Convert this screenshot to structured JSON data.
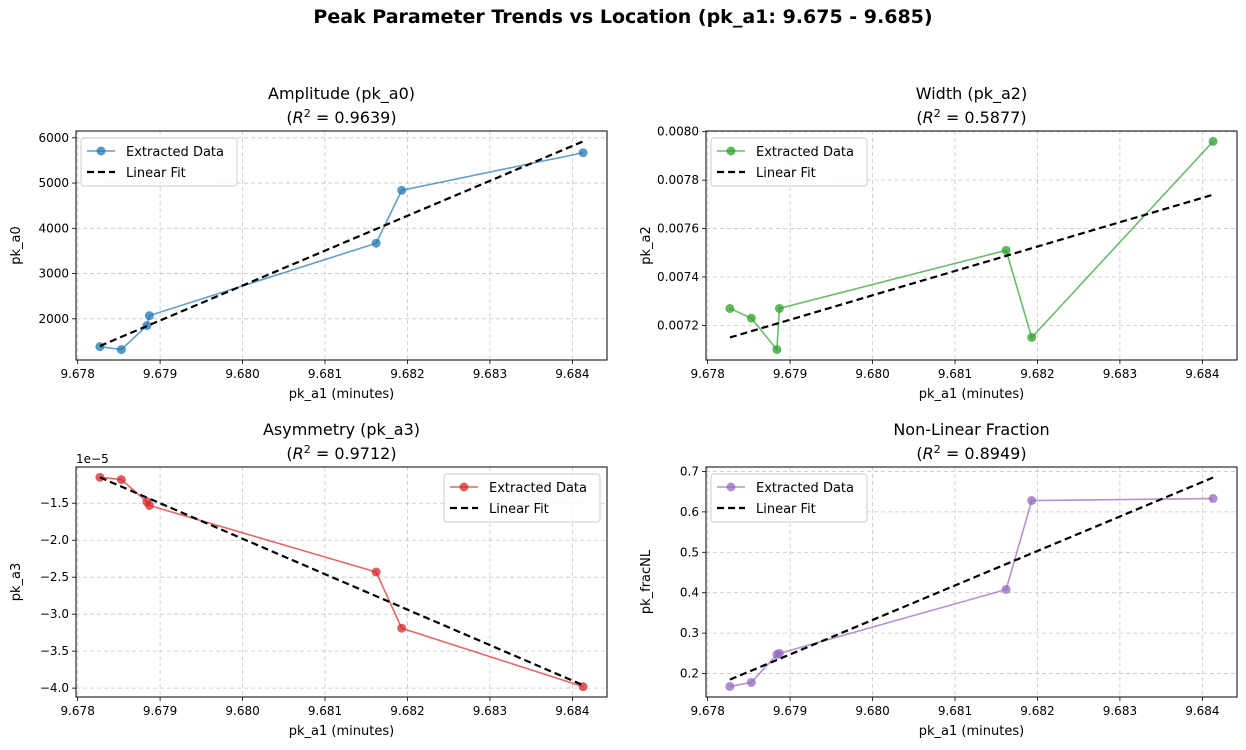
{
  "suptitle": "Peak Parameter Trends vs Location (pk_a1: 9.675 - 9.685)",
  "chart_data": [
    {
      "type": "line",
      "title": "Amplitude (pk_a0)",
      "r2_prefix": "R",
      "r2_value": "0.9639",
      "xlabel": "pk_a1 (minutes)",
      "ylabel": "pk_a0",
      "color": "#1f77b4",
      "legend": "upper-left",
      "grid": true,
      "xlim": [
        9.67798,
        9.68442
      ],
      "ylim": [
        1090,
        6150
      ],
      "x_ticks": [
        9.678,
        9.679,
        9.68,
        9.681,
        9.682,
        9.683,
        9.684
      ],
      "x_tick_labels": [
        "9.678",
        "9.679",
        "9.680",
        "9.681",
        "9.682",
        "9.683",
        "9.684"
      ],
      "y_ticks": [
        2000,
        3000,
        4000,
        5000,
        6000
      ],
      "y_tick_labels": [
        "2000",
        "3000",
        "4000",
        "5000",
        "6000"
      ],
      "offset_text": "",
      "series": [
        {
          "name": "Extracted Data",
          "x": [
            9.67827,
            9.67853,
            9.67884,
            9.67887,
            9.68162,
            9.68193,
            9.68413
          ],
          "y": [
            1385,
            1320,
            1850,
            2070,
            3670,
            4840,
            5670
          ]
        },
        {
          "name": "Linear Fit",
          "x": [
            9.67827,
            9.68413
          ],
          "y": [
            1400,
            5920
          ]
        }
      ]
    },
    {
      "type": "line",
      "title": "Width (pk_a2)",
      "r2_prefix": "R",
      "r2_value": "0.5877",
      "xlabel": "pk_a1 (minutes)",
      "ylabel": "pk_a2",
      "color": "#2ca02c",
      "legend": "upper-left",
      "grid": true,
      "xlim": [
        9.67798,
        9.68442
      ],
      "ylim": [
        0.007057,
        0.008003
      ],
      "x_ticks": [
        9.678,
        9.679,
        9.68,
        9.681,
        9.682,
        9.683,
        9.684
      ],
      "x_tick_labels": [
        "9.678",
        "9.679",
        "9.680",
        "9.681",
        "9.682",
        "9.683",
        "9.684"
      ],
      "y_ticks": [
        0.0072,
        0.0074,
        0.0076,
        0.0078,
        0.008
      ],
      "y_tick_labels": [
        "0.0072",
        "0.0074",
        "0.0076",
        "0.0078",
        "0.0080"
      ],
      "offset_text": "",
      "series": [
        {
          "name": "Extracted Data",
          "x": [
            9.67827,
            9.67853,
            9.67884,
            9.67887,
            9.68162,
            9.68193,
            9.68413
          ],
          "y": [
            0.00727,
            0.00723,
            0.0071,
            0.00727,
            0.00751,
            0.00715,
            0.00796
          ]
        },
        {
          "name": "Linear Fit",
          "x": [
            9.67827,
            9.68413
          ],
          "y": [
            0.00715,
            0.00774
          ]
        }
      ]
    },
    {
      "type": "line",
      "title": "Asymmetry (pk_a3)",
      "r2_prefix": "R",
      "r2_value": "0.9712",
      "xlabel": "pk_a1 (minutes)",
      "ylabel": "pk_a3",
      "color": "#d62728",
      "legend": "upper-right",
      "grid": true,
      "xlim": [
        9.67798,
        9.68442
      ],
      "ylim": [
        -4.12,
        -1.01
      ],
      "x_ticks": [
        9.678,
        9.679,
        9.68,
        9.681,
        9.682,
        9.683,
        9.684
      ],
      "x_tick_labels": [
        "9.678",
        "9.679",
        "9.680",
        "9.681",
        "9.682",
        "9.683",
        "9.684"
      ],
      "y_ticks": [
        -4.0,
        -3.5,
        -3.0,
        -2.5,
        -2.0,
        -1.5
      ],
      "y_tick_labels": [
        "−4.0",
        "−3.5",
        "−3.0",
        "−2.5",
        "−2.0",
        "−1.5"
      ],
      "offset_text": "1e−5",
      "series": [
        {
          "name": "Extracted Data",
          "x": [
            9.67827,
            9.67853,
            9.67884,
            9.67887,
            9.68162,
            9.68193,
            9.68413
          ],
          "y": [
            -1.15,
            -1.18,
            -1.48,
            -1.53,
            -2.43,
            -3.19,
            -3.98
          ]
        },
        {
          "name": "Linear Fit",
          "x": [
            9.67827,
            9.68413
          ],
          "y": [
            -1.15,
            -3.96
          ]
        }
      ]
    },
    {
      "type": "line",
      "title": "Non-Linear Fraction",
      "r2_prefix": "R",
      "r2_value": "0.8949",
      "xlabel": "pk_a1 (minutes)",
      "ylabel": "pk_fracNL",
      "color": "#9467bd",
      "legend": "upper-left",
      "grid": true,
      "xlim": [
        9.67798,
        9.68442
      ],
      "ylim": [
        0.142,
        0.711
      ],
      "x_ticks": [
        9.678,
        9.679,
        9.68,
        9.681,
        9.682,
        9.683,
        9.684
      ],
      "x_tick_labels": [
        "9.678",
        "9.679",
        "9.680",
        "9.681",
        "9.682",
        "9.683",
        "9.684"
      ],
      "y_ticks": [
        0.2,
        0.3,
        0.4,
        0.5,
        0.6,
        0.7
      ],
      "y_tick_labels": [
        "0.2",
        "0.3",
        "0.4",
        "0.5",
        "0.6",
        "0.7"
      ],
      "offset_text": "",
      "series": [
        {
          "name": "Extracted Data",
          "x": [
            9.67827,
            9.67853,
            9.67884,
            9.67887,
            9.68162,
            9.68193,
            9.68413
          ],
          "y": [
            0.168,
            0.178,
            0.247,
            0.25,
            0.408,
            0.628,
            0.633
          ]
        },
        {
          "name": "Linear Fit",
          "x": [
            9.67827,
            9.68413
          ],
          "y": [
            0.185,
            0.685
          ]
        }
      ]
    }
  ]
}
